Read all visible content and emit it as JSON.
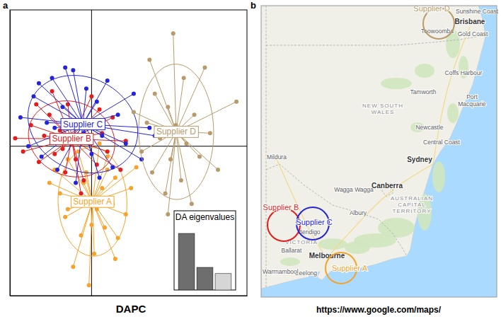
{
  "chart_data": [
    {
      "type": "scatter",
      "xlim": [
        -3.1,
        5.9
      ],
      "ylim": [
        -5.7,
        5.2
      ],
      "xticks": [
        0
      ],
      "yticks": [
        0
      ],
      "grid": true,
      "tick_labels": false,
      "marker": "circle",
      "series": [
        {
          "name": "Supplier A",
          "color": "#f5a32a",
          "x": [
            -1.4,
            -0.9,
            -0.5,
            0.3,
            0.6,
            -0.2,
            0.9,
            1.5,
            -1.2,
            -0.6,
            0.2,
            0.8,
            1.3,
            -1.0,
            0.0,
            0.5,
            -0.4,
            1.0,
            -1.6,
            0.4,
            -0.3,
            1.7,
            0.1,
            -0.7,
            0.9,
            -0.1,
            0.6,
            -0.9
          ],
          "values": [
            -0.9,
            -0.5,
            -0.2,
            0.1,
            -0.4,
            -1.0,
            -1.2,
            -1.6,
            -1.8,
            -2.1,
            -2.4,
            -2.2,
            -2.6,
            -2.7,
            -3.0,
            -3.1,
            -3.4,
            -3.5,
            -1.4,
            -1.6,
            -1.4,
            -0.8,
            -4.1,
            -4.6,
            -4.3,
            -5.3,
            -0.9,
            -2.4
          ]
        },
        {
          "name": "Supplier B",
          "color": "#e41c1c",
          "x": [
            -2.9,
            -2.6,
            -2.3,
            -2.0,
            -1.8,
            -1.6,
            -1.4,
            -1.2,
            -1.0,
            -0.9,
            -0.8,
            -0.6,
            -0.5,
            -0.3,
            -0.2,
            0.0,
            0.2,
            0.4,
            0.6,
            0.8,
            1.1,
            1.3,
            -1.5,
            -2.1,
            -0.4,
            0.3,
            -1.1,
            -0.7
          ],
          "values": [
            0.3,
            -0.2,
            0.8,
            -0.6,
            0.4,
            1.2,
            -0.3,
            0.6,
            -1.0,
            1.6,
            0.1,
            -0.5,
            0.9,
            -1.3,
            0.3,
            1.9,
            -0.7,
            0.5,
            -0.2,
            1.1,
            -0.9,
            0.2,
            2.1,
            1.6,
            -1.8,
            1.4,
            -0.1,
            0.4
          ]
        },
        {
          "name": "Supplier C",
          "color": "#2424dd",
          "x": [
            -2.7,
            -2.4,
            -2.2,
            -1.9,
            -1.7,
            -1.5,
            -1.3,
            -1.1,
            -0.9,
            -0.7,
            -0.6,
            -0.4,
            -0.2,
            0.0,
            0.2,
            0.4,
            0.6,
            0.8,
            1.0,
            1.3,
            1.6,
            2.2,
            -1.0,
            0.3,
            -2.0,
            1.9,
            -0.3,
            -1.4,
            2.4
          ],
          "values": [
            1.1,
            0.0,
            1.9,
            -0.4,
            0.9,
            2.6,
            -0.9,
            1.5,
            0.2,
            2.9,
            -1.4,
            1.0,
            2.2,
            -0.3,
            1.7,
            0.4,
            2.5,
            -0.8,
            1.2,
            0.1,
            2.0,
            0.7,
            3.0,
            -1.2,
            2.4,
            -0.5,
            0.5,
            0.7,
            0.4
          ]
        },
        {
          "name": "Supplier D",
          "color": "#b99b6b",
          "x": [
            1.6,
            1.9,
            2.1,
            2.3,
            2.4,
            2.6,
            2.8,
            2.9,
            3.0,
            3.1,
            3.2,
            3.4,
            3.5,
            3.6,
            3.8,
            3.9,
            4.1,
            4.3,
            4.5,
            4.8,
            5.5,
            2.2,
            2.9,
            2.7
          ],
          "values": [
            1.3,
            -0.2,
            0.9,
            -1.0,
            2.0,
            0.3,
            -1.8,
            1.5,
            -0.5,
            4.3,
            0.8,
            -1.3,
            2.6,
            0.1,
            -2.2,
            1.2,
            -0.4,
            3.0,
            0.5,
            -0.9,
            1.7,
            3.3,
            -2.6,
            0.6
          ]
        }
      ]
    },
    {
      "type": "bar",
      "title": "DA eigenvalues",
      "categories": [
        null,
        null,
        null
      ],
      "values": [
        100,
        40,
        29
      ],
      "colors": [
        "#6e6e6e",
        "#6e6e6e",
        "#d6d6d6"
      ],
      "ylim": [
        0,
        140
      ],
      "tick_labels": false
    }
  ],
  "figure": {
    "panel_labels": [
      "a",
      "b"
    ],
    "captions": [
      "DAPC",
      "https://www.google.com/maps/"
    ]
  },
  "map": {
    "places": [
      "Sunshine Coast",
      "Brisbane",
      "Toowoomba",
      "Gold Coast",
      "Coffs Harbour",
      "Port Macquarie",
      "Tamworth",
      "Newcastle",
      "Central Coast",
      "Sydney",
      "NEW SOUTH WALES",
      "Mildura",
      "Wagga Wagga",
      "Canberra",
      "AUSTRALIAN CAPITAL TERRITORY",
      "Albury",
      "Bendigo",
      "VICTORIA",
      "Ballarat",
      "Melbourne",
      "Geelong",
      "Warrnambool"
    ],
    "suppliers": [
      "Supplier B",
      "Supplier C",
      "Supplier A",
      "Supplier D"
    ]
  }
}
